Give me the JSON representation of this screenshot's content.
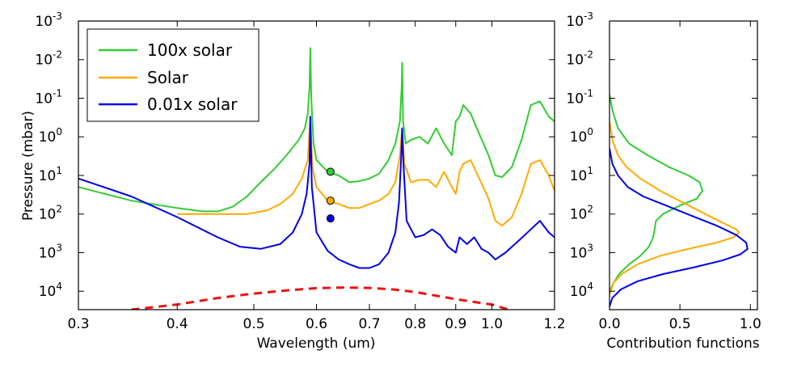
{
  "chart_data": [
    {
      "type": "line",
      "xlabel": "Wavelength  (um)",
      "ylabel": "Pressure  (mbar)",
      "x_scale": "log",
      "y_scale": "log",
      "y_inverted": true,
      "xlim": [
        0.3,
        1.2
      ],
      "ylim": [
        0.001,
        30000
      ],
      "x_ticks": [
        {
          "value": 0.3,
          "label": "0.3"
        },
        {
          "value": 0.4,
          "label": "0.4"
        },
        {
          "value": 0.5,
          "label": "0.5"
        },
        {
          "value": 0.6,
          "label": "0.6"
        },
        {
          "value": 0.7,
          "label": "0.7"
        },
        {
          "value": 0.8,
          "label": "0.8"
        },
        {
          "value": 0.9,
          "label": "0.9"
        },
        {
          "value": 1.0,
          "label": "1.0"
        },
        {
          "value": 1.2,
          "label": "1.2"
        }
      ],
      "y_ticks": [
        {
          "value": 0.001,
          "base": "10",
          "exp": "-3"
        },
        {
          "value": 0.01,
          "base": "10",
          "exp": "-2"
        },
        {
          "value": 0.1,
          "base": "10",
          "exp": "-1"
        },
        {
          "value": 1,
          "base": "10",
          "exp": "0"
        },
        {
          "value": 10,
          "base": "10",
          "exp": "1"
        },
        {
          "value": 100,
          "base": "10",
          "exp": "2"
        },
        {
          "value": 1000,
          "base": "10",
          "exp": "3"
        },
        {
          "value": 10000,
          "base": "10",
          "exp": "4"
        }
      ],
      "legend_position": "top-left",
      "series": [
        {
          "name": "100x solar",
          "color": "#33cc33",
          "x": [
            0.3,
            0.35,
            0.4,
            0.43,
            0.45,
            0.47,
            0.49,
            0.51,
            0.53,
            0.55,
            0.57,
            0.58,
            0.585,
            0.588,
            0.5893,
            0.591,
            0.595,
            0.6,
            0.62,
            0.64,
            0.66,
            0.68,
            0.7,
            0.72,
            0.74,
            0.755,
            0.765,
            0.769,
            0.77,
            0.772,
            0.778,
            0.79,
            0.81,
            0.83,
            0.85,
            0.87,
            0.89,
            0.9,
            0.91,
            0.92,
            0.94,
            0.96,
            0.99,
            1.01,
            1.03,
            1.06,
            1.09,
            1.12,
            1.15,
            1.18,
            1.2
          ],
          "y": [
            20,
            45,
            70,
            85,
            85,
            65,
            35,
            15,
            7,
            3,
            1.2,
            0.6,
            0.25,
            0.05,
            0.005,
            0.1,
            1.5,
            4,
            8,
            10,
            15,
            14,
            12,
            9,
            4,
            1.5,
            0.4,
            0.05,
            0.012,
            0.4,
            1.5,
            1.2,
            1,
            1.5,
            0.6,
            1.5,
            3,
            0.4,
            0.3,
            0.15,
            0.25,
            0.7,
            3,
            10,
            11,
            6,
            1.2,
            0.15,
            0.12,
            0.3,
            0.4
          ]
        },
        {
          "name": "Solar",
          "color": "#ffaa00",
          "x": [
            0.4,
            0.45,
            0.49,
            0.52,
            0.54,
            0.56,
            0.575,
            0.585,
            0.5893,
            0.593,
            0.6,
            0.62,
            0.64,
            0.66,
            0.68,
            0.7,
            0.72,
            0.74,
            0.755,
            0.765,
            0.77,
            0.775,
            0.79,
            0.81,
            0.83,
            0.85,
            0.87,
            0.89,
            0.9,
            0.91,
            0.92,
            0.94,
            0.96,
            0.99,
            1.01,
            1.03,
            1.06,
            1.09,
            1.12,
            1.15,
            1.18,
            1.2
          ],
          "y": [
            100,
            100,
            100,
            80,
            55,
            30,
            12,
            4,
            0.3,
            6,
            20,
            45,
            55,
            70,
            70,
            55,
            45,
            30,
            15,
            3,
            0.6,
            5,
            15,
            13,
            13,
            20,
            8,
            20,
            30,
            8,
            5,
            4,
            10,
            40,
            150,
            200,
            120,
            30,
            5,
            4,
            10,
            25
          ]
        },
        {
          "name": "0.01x solar",
          "color": "#0000ee",
          "x": [
            0.3,
            0.35,
            0.4,
            0.45,
            0.48,
            0.51,
            0.54,
            0.56,
            0.575,
            0.583,
            0.588,
            0.5893,
            0.592,
            0.6,
            0.62,
            0.64,
            0.66,
            0.68,
            0.7,
            0.72,
            0.74,
            0.755,
            0.763,
            0.768,
            0.77,
            0.773,
            0.78,
            0.8,
            0.82,
            0.84,
            0.86,
            0.88,
            0.9,
            0.91,
            0.93,
            0.95,
            0.97,
            0.99,
            1.01,
            1.04,
            1.08,
            1.12,
            1.15,
            1.18,
            1.2
          ],
          "y": [
            12,
            35,
            120,
            400,
            700,
            800,
            600,
            300,
            100,
            30,
            5,
            0.3,
            20,
            300,
            900,
            1500,
            2000,
            2500,
            2500,
            2000,
            1000,
            300,
            50,
            3,
            0.6,
            5,
            150,
            400,
            350,
            250,
            350,
            700,
            1000,
            400,
            600,
            400,
            800,
            1000,
            1500,
            1000,
            500,
            250,
            150,
            300,
            400
          ]
        },
        {
          "name": "",
          "color": "#ee1111",
          "line_style": "dashed",
          "x": [
            0.35,
            0.4,
            0.45,
            0.5,
            0.55,
            0.6,
            0.65,
            0.7,
            0.75,
            0.8,
            0.85,
            0.9,
            0.95,
            1.0,
            1.05
          ],
          "y": [
            30000,
            22000,
            15000,
            11500,
            9500,
            8300,
            8000,
            8200,
            9000,
            10500,
            13000,
            16000,
            19000,
            22000,
            30000
          ]
        }
      ],
      "markers": [
        {
          "x": 0.625,
          "y": 8,
          "color": "#33cc33"
        },
        {
          "x": 0.625,
          "y": 45,
          "color": "#ffaa00"
        },
        {
          "x": 0.625,
          "y": 130,
          "color": "#0000ee"
        }
      ]
    },
    {
      "type": "line",
      "xlabel": "Contribution functions",
      "ylabel": "",
      "y_scale": "log",
      "y_inverted": true,
      "xlim": [
        0.0,
        1.05
      ],
      "ylim": [
        0.001,
        30000
      ],
      "x_ticks": [
        {
          "value": 0.0,
          "label": "0.0"
        },
        {
          "value": 0.5,
          "label": "0.5"
        },
        {
          "value": 1.0,
          "label": "1.0"
        }
      ],
      "series": [
        {
          "name": "100x solar",
          "color": "#33cc33",
          "x": [
            0.0,
            0.02,
            0.06,
            0.14,
            0.27,
            0.42,
            0.56,
            0.64,
            0.66,
            0.62,
            0.5,
            0.38,
            0.33,
            0.32,
            0.31,
            0.28,
            0.22,
            0.14,
            0.07,
            0.03,
            0.0
          ],
          "y": [
            0.08,
            0.2,
            0.6,
            1.5,
            3,
            6,
            10,
            15,
            25,
            40,
            60,
            100,
            150,
            250,
            400,
            700,
            1200,
            2000,
            3500,
            6000,
            10000
          ]
        },
        {
          "name": "Solar",
          "color": "#ffaa00",
          "x": [
            0.0,
            0.02,
            0.06,
            0.12,
            0.22,
            0.36,
            0.52,
            0.68,
            0.82,
            0.9,
            0.92,
            0.88,
            0.76,
            0.56,
            0.36,
            0.2,
            0.09,
            0.03,
            0.0
          ],
          "y": [
            0.4,
            1.2,
            3,
            6,
            12,
            25,
            50,
            100,
            180,
            250,
            300,
            400,
            550,
            800,
            1200,
            2000,
            3500,
            6000,
            12000
          ]
        },
        {
          "name": "0.01x solar",
          "color": "#0000ee",
          "x": [
            0.0,
            0.02,
            0.06,
            0.13,
            0.24,
            0.4,
            0.58,
            0.76,
            0.9,
            0.97,
            0.98,
            0.93,
            0.8,
            0.6,
            0.38,
            0.2,
            0.08,
            0.02,
            0.0
          ],
          "y": [
            2,
            5,
            10,
            20,
            35,
            60,
            110,
            200,
            350,
            550,
            800,
            1100,
            1600,
            2400,
            3600,
            5500,
            9000,
            15000,
            25000
          ]
        }
      ]
    }
  ]
}
